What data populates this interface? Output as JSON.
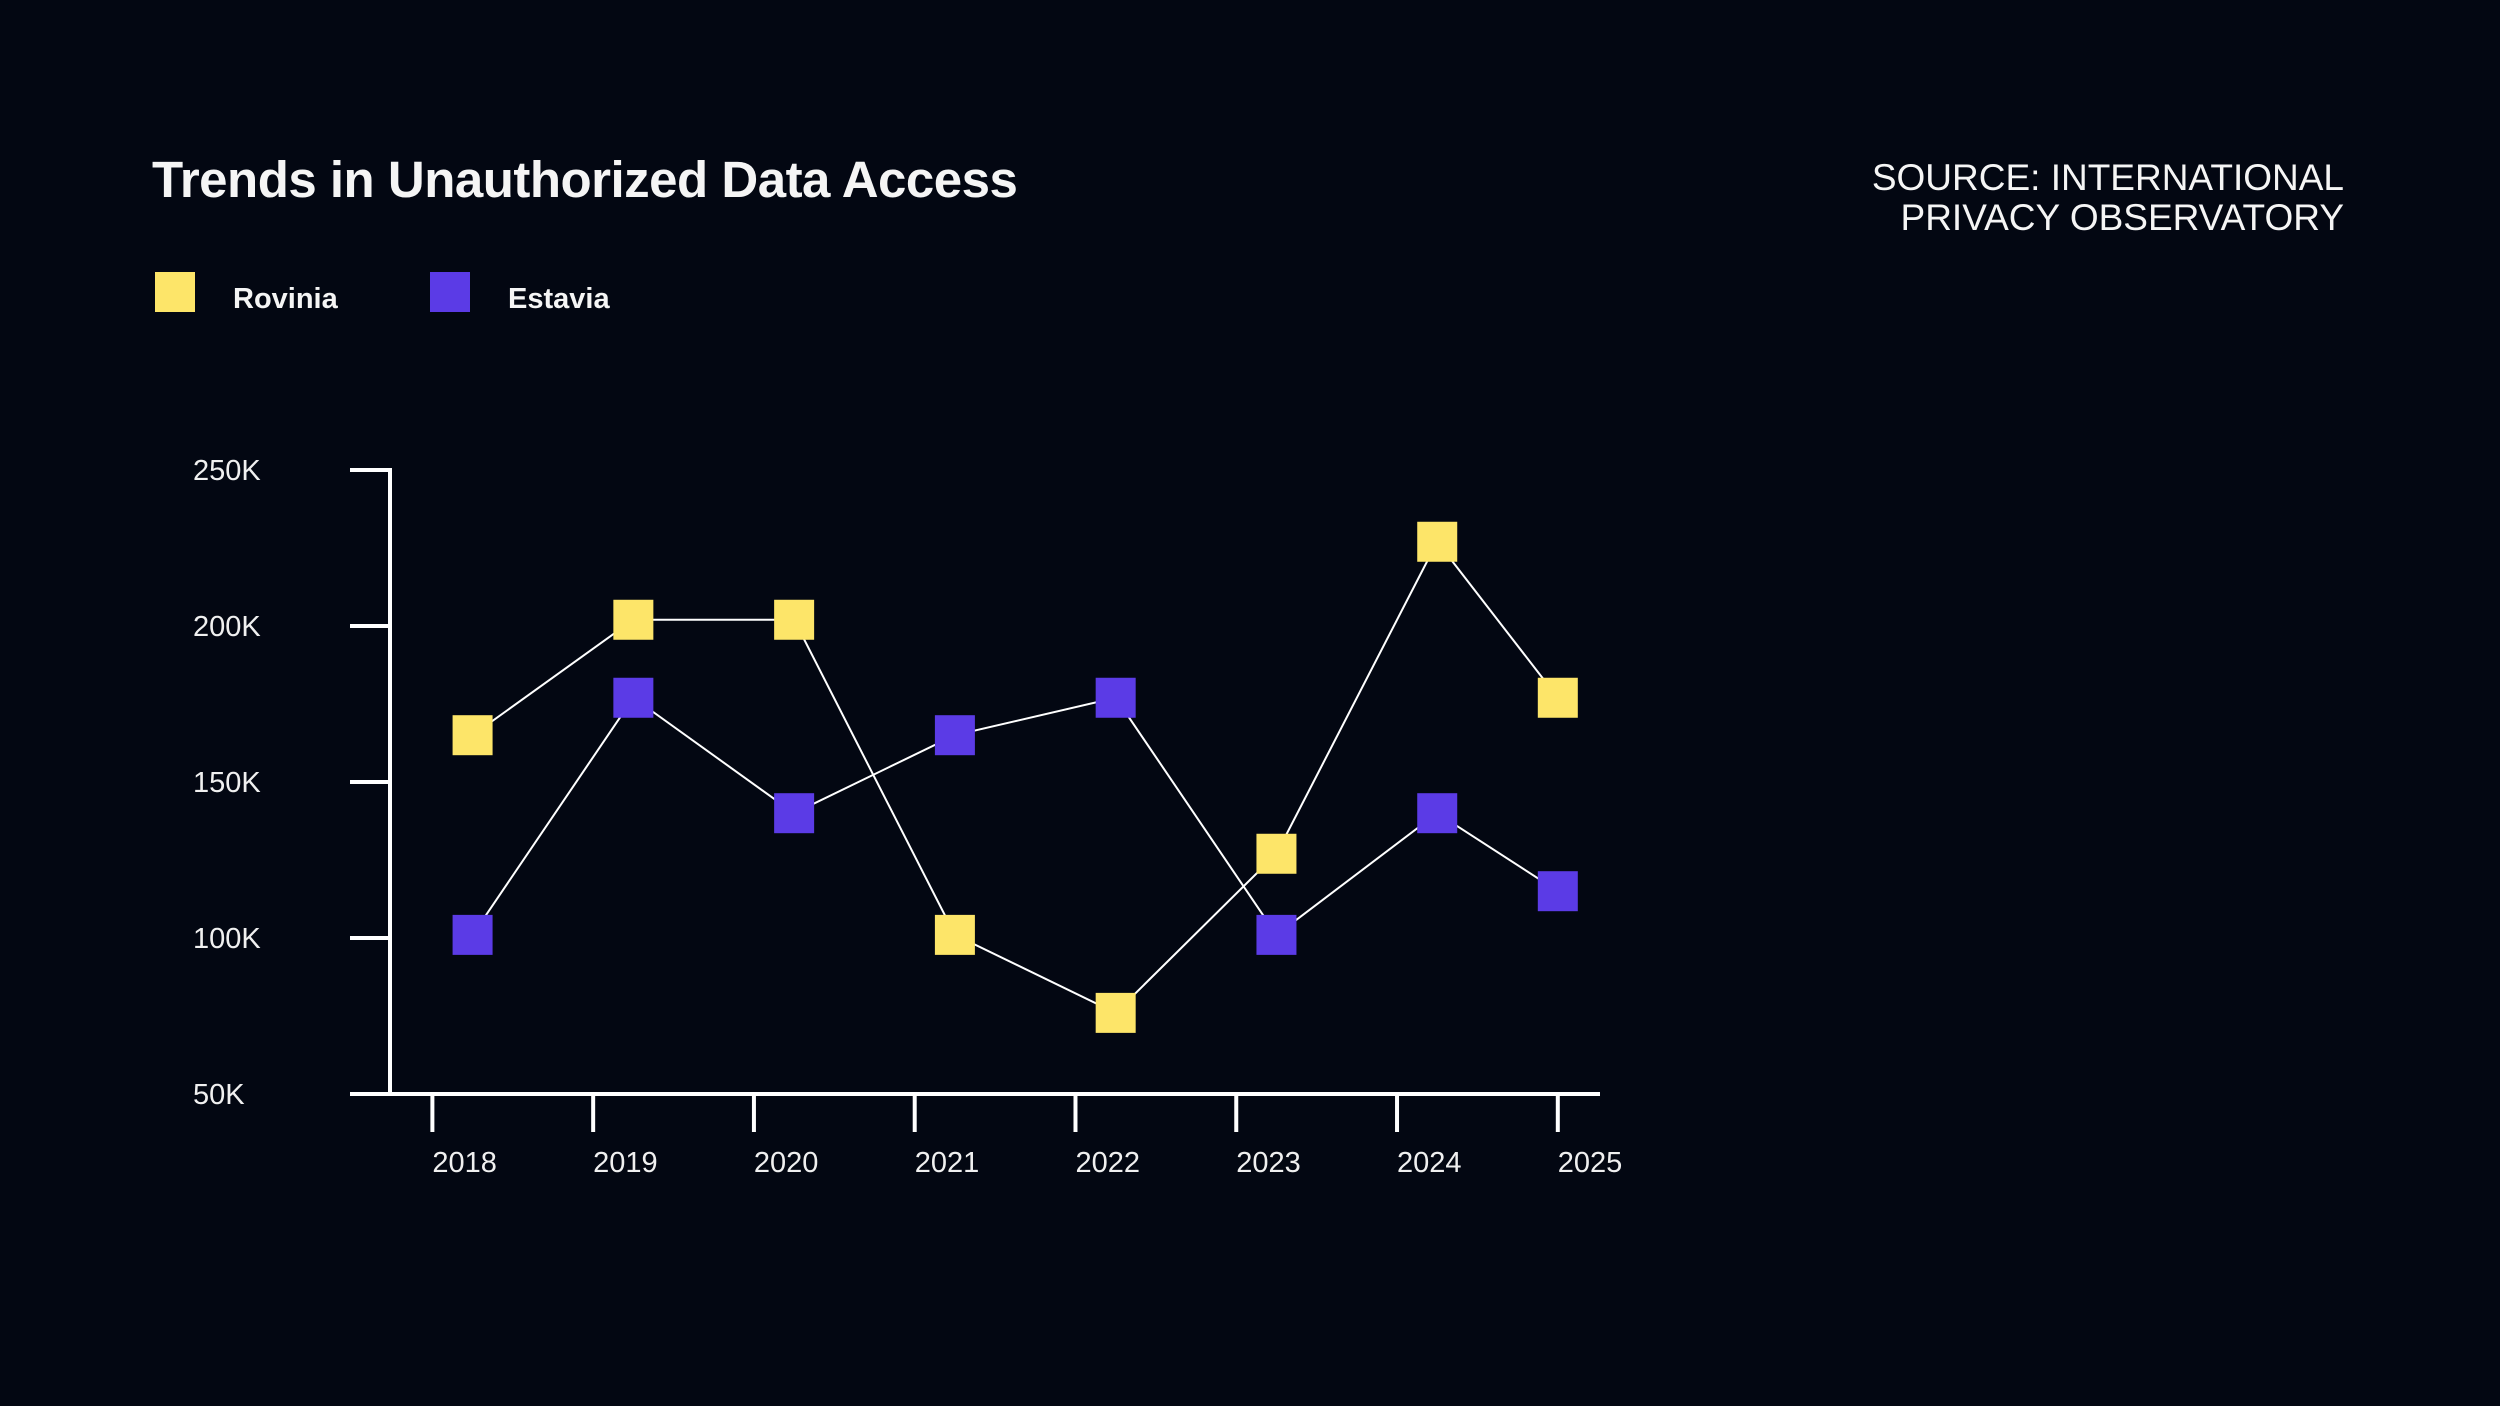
{
  "title": "Trends in Unauthorized Data Access",
  "source": {
    "line1": "SOURCE: INTERNATIONAL",
    "line2": "PRIVACY OBSERVATORY"
  },
  "legend": [
    {
      "label": "Rovinia",
      "color": "#FDE569"
    },
    {
      "label": "Estavia",
      "color": "#5B3BE6"
    }
  ],
  "chart_data": {
    "type": "line",
    "title": "Trends in Unauthorized Data Access",
    "xlabel": "",
    "ylabel": "",
    "x_ticks": [
      "2018",
      "2019",
      "2020",
      "2021",
      "2022",
      "2023",
      "2024",
      "2025"
    ],
    "y_ticks": [
      "50K",
      "100K",
      "150K",
      "200K",
      "250K"
    ],
    "y_tick_values": [
      50000,
      100000,
      150000,
      200000,
      250000
    ],
    "ylim": [
      50000,
      250000
    ],
    "xlim": [
      2017.25,
      2025
    ],
    "grid": false,
    "legend_position": "top-left",
    "line_color": "#FFFFFF",
    "series": [
      {
        "name": "Rovinia",
        "color": "#FDE569",
        "x": [
          2018,
          2019,
          2020,
          2021,
          2022,
          2023,
          2024,
          2024.75
        ],
        "values": [
          165000,
          202000,
          202000,
          101000,
          76000,
          127000,
          227000,
          177000
        ]
      },
      {
        "name": "Estavia",
        "color": "#5B3BE6",
        "x": [
          2018,
          2019,
          2020,
          2021,
          2022,
          2023,
          2024,
          2024.75
        ],
        "values": [
          101000,
          177000,
          140000,
          165000,
          177000,
          101000,
          140000,
          115000
        ]
      }
    ]
  }
}
